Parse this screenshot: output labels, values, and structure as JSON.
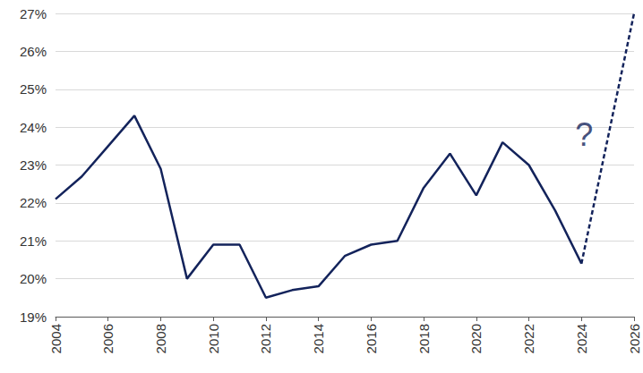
{
  "chart_data": {
    "type": "line",
    "x": [
      2004,
      2005,
      2006,
      2007,
      2008,
      2009,
      2010,
      2011,
      2012,
      2013,
      2014,
      2015,
      2016,
      2017,
      2018,
      2019,
      2020,
      2021,
      2022,
      2023,
      2024,
      2026
    ],
    "series": [
      {
        "color": "#13235b",
        "line_style": "solid",
        "values": [
          22.1,
          22.7,
          23.5,
          24.3,
          22.9,
          20.0,
          20.9,
          20.9,
          19.5,
          19.7,
          19.8,
          20.6,
          20.9,
          21.0,
          22.4,
          23.3,
          22.2,
          23.6,
          23.0,
          21.8,
          20.4,
          null
        ]
      },
      {
        "color": "#13235b",
        "line_style": "dashed",
        "values": [
          null,
          null,
          null,
          null,
          null,
          null,
          null,
          null,
          null,
          null,
          null,
          null,
          null,
          null,
          null,
          null,
          null,
          null,
          null,
          null,
          20.4,
          27.0
        ]
      }
    ],
    "xlim": [
      2004,
      2026
    ],
    "xticks": [
      2004,
      2006,
      2008,
      2010,
      2012,
      2014,
      2016,
      2018,
      2020,
      2022,
      2024,
      2026
    ],
    "ylim": [
      19,
      27
    ],
    "yticks": [
      {
        "value": 19,
        "label": "19%"
      },
      {
        "value": 20,
        "label": "20%"
      },
      {
        "value": 21,
        "label": "21%"
      },
      {
        "value": 22,
        "label": "22%"
      },
      {
        "value": 23,
        "label": "23%"
      },
      {
        "value": 24,
        "label": "24%"
      },
      {
        "value": 25,
        "label": "25%"
      },
      {
        "value": 26,
        "label": "26%"
      },
      {
        "value": 27,
        "label": "27%"
      }
    ],
    "annotations": [
      {
        "text": "?",
        "x": 2024.1,
        "y": 23.8,
        "color": "#13235b"
      }
    ],
    "grid": true
  }
}
